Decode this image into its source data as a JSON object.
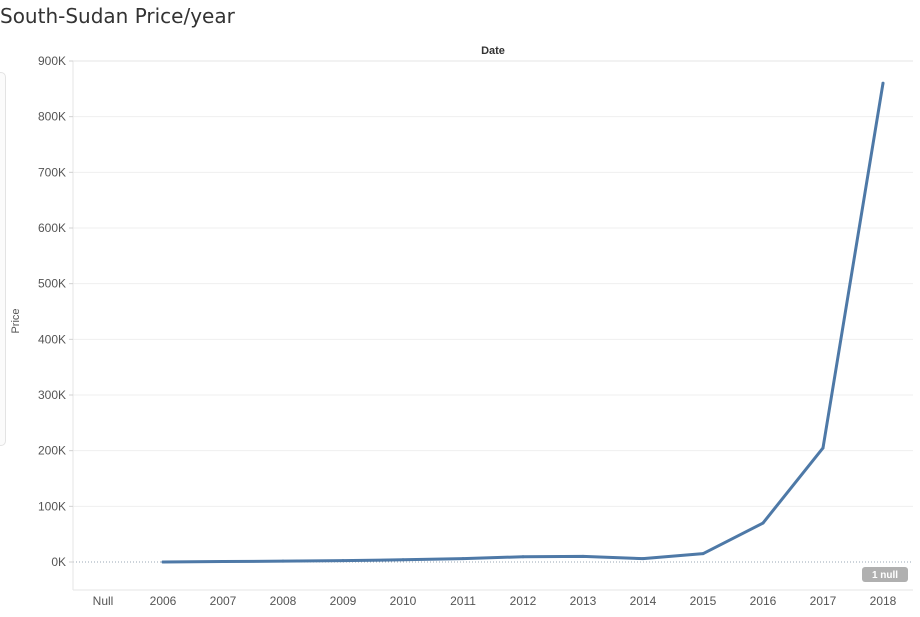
{
  "page": {
    "title": "South-Sudan Price/year"
  },
  "chart_data": {
    "type": "line",
    "title": "South-Sudan Price/year",
    "xlabel": "Date",
    "ylabel": "Price",
    "categories": [
      "Null",
      "2006",
      "2007",
      "2008",
      "2009",
      "2010",
      "2011",
      "2012",
      "2013",
      "2014",
      "2015",
      "2016",
      "2017",
      "2018"
    ],
    "series": [
      {
        "color": "#4e79a7",
        "x": [
          "2006",
          "2007",
          "2008",
          "2009",
          "2010",
          "2011",
          "2012",
          "2013",
          "2014",
          "2015",
          "2016",
          "2017",
          "2018"
        ],
        "values": [
          0,
          800,
          1500,
          2500,
          4000,
          6000,
          9500,
          10000,
          6000,
          15000,
          70000,
          205000,
          860000
        ]
      }
    ],
    "yticks": [
      {
        "value": 0,
        "label": "0K"
      },
      {
        "value": 100000,
        "label": "100K"
      },
      {
        "value": 200000,
        "label": "200K"
      },
      {
        "value": 300000,
        "label": "300K"
      },
      {
        "value": 400000,
        "label": "400K"
      },
      {
        "value": 500000,
        "label": "500K"
      },
      {
        "value": 600000,
        "label": "600K"
      },
      {
        "value": 700000,
        "label": "700K"
      },
      {
        "value": 800000,
        "label": "800K"
      },
      {
        "value": 900000,
        "label": "900K"
      }
    ],
    "ylim": [
      0,
      900000
    ],
    "grid": true,
    "null_indicator": "1 null"
  }
}
